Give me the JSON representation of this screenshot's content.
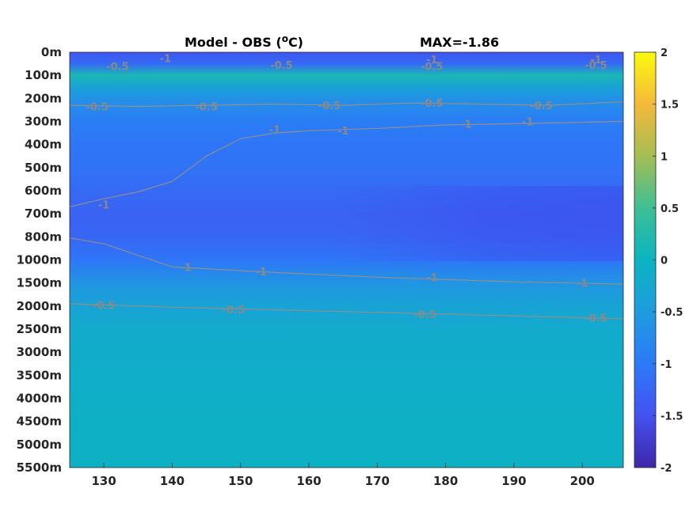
{
  "chart_data": {
    "type": "heatmap",
    "title_left": "Model - OBS (",
    "title_unit_sup": "o",
    "title_unit": "C)",
    "title_right": "MAX=-1.86",
    "xlabel": "",
    "ylabel": "",
    "x_ticks": [
      130,
      140,
      150,
      160,
      170,
      180,
      190,
      200
    ],
    "xlim": [
      125,
      206
    ],
    "y_ticks": [
      "0m",
      "100m",
      "200m",
      "300m",
      "400m",
      "500m",
      "600m",
      "700m",
      "800m",
      "1000m",
      "1500m",
      "2000m",
      "2500m",
      "3000m",
      "3500m",
      "4000m",
      "4500m",
      "5000m",
      "5500m"
    ],
    "colorbar": {
      "range": [
        -2,
        2
      ],
      "ticks": [
        "2",
        "1.5",
        "1",
        "0.5",
        "0",
        "-0.5",
        "-1",
        "-1.5",
        "-2"
      ],
      "colormap": "parula"
    },
    "depth_profile": [
      {
        "level": 0.0,
        "value": -1.45
      },
      {
        "level": 0.5,
        "value": -1.2
      },
      {
        "level": 1.0,
        "value": 0.15
      },
      {
        "level": 1.5,
        "value": -0.35
      },
      {
        "level": 2.0,
        "value": -0.65
      },
      {
        "level": 3.0,
        "value": -0.95
      },
      {
        "level": 4.0,
        "value": -1.05
      },
      {
        "level": 5.0,
        "value": -1.1
      },
      {
        "level": 6.0,
        "value": -1.2
      },
      {
        "level": 7.0,
        "value": -1.3
      },
      {
        "level": 8.0,
        "value": -1.25
      },
      {
        "level": 9.0,
        "value": -1.05
      },
      {
        "level": 10.0,
        "value": -0.6
      },
      {
        "level": 11.0,
        "value": -0.35
      },
      {
        "level": 12.0,
        "value": -0.2
      },
      {
        "level": 14.0,
        "value": -0.12
      },
      {
        "level": 18.0,
        "value": -0.06
      }
    ],
    "contour_labels": [
      {
        "text": "-0.5",
        "x": 132,
        "level": 0.6
      },
      {
        "text": "-1",
        "x": 139,
        "level": 0.25
      },
      {
        "text": "-0.5",
        "x": 156,
        "level": 0.55
      },
      {
        "text": "-1",
        "x": 178,
        "level": 0.3
      },
      {
        "text": "-0.5",
        "x": 178,
        "level": 0.6
      },
      {
        "text": "-1",
        "x": 202,
        "level": 0.3
      },
      {
        "text": "-0.5",
        "x": 202,
        "level": 0.55
      },
      {
        "text": "-0.5",
        "x": 129,
        "level": 2.35
      },
      {
        "text": "-0.5",
        "x": 145,
        "level": 2.35
      },
      {
        "text": "-0.5",
        "x": 163,
        "level": 2.3
      },
      {
        "text": "-0.5",
        "x": 178,
        "level": 2.2
      },
      {
        "text": "-0.5",
        "x": 194,
        "level": 2.3
      },
      {
        "text": "-1",
        "x": 155,
        "level": 3.35
      },
      {
        "text": "-1",
        "x": 165,
        "level": 3.4
      },
      {
        "text": "-1",
        "x": 183,
        "level": 3.1
      },
      {
        "text": "-1",
        "x": 192,
        "level": 3.0
      },
      {
        "text": "-1",
        "x": 130,
        "level": 6.6
      },
      {
        "text": "-1",
        "x": 142,
        "level": 9.3
      },
      {
        "text": "-1",
        "x": 153,
        "level": 9.5
      },
      {
        "text": "-1",
        "x": 178,
        "level": 9.75
      },
      {
        "text": "-1",
        "x": 200,
        "level": 10.0
      },
      {
        "text": "-0.5",
        "x": 130,
        "level": 10.95
      },
      {
        "text": "-0.5",
        "x": 149,
        "level": 11.15
      },
      {
        "text": "-0.5",
        "x": 177,
        "level": 11.35
      },
      {
        "text": "-0.5",
        "x": 202,
        "level": 11.5
      }
    ],
    "contour_lines": [
      {
        "level_value": -0.5,
        "points": [
          [
            125,
            2.3
          ],
          [
            135,
            2.35
          ],
          [
            145,
            2.3
          ],
          [
            155,
            2.25
          ],
          [
            165,
            2.3
          ],
          [
            175,
            2.2
          ],
          [
            185,
            2.25
          ],
          [
            195,
            2.3
          ],
          [
            206,
            2.15
          ]
        ]
      },
      {
        "level_value": -1,
        "points": [
          [
            125,
            6.7
          ],
          [
            130,
            6.35
          ],
          [
            135,
            6.05
          ],
          [
            140,
            5.6
          ],
          [
            145,
            4.5
          ],
          [
            150,
            3.75
          ],
          [
            155,
            3.5
          ],
          [
            160,
            3.4
          ],
          [
            170,
            3.3
          ],
          [
            180,
            3.15
          ],
          [
            190,
            3.1
          ],
          [
            206,
            3.0
          ]
        ]
      },
      {
        "level_value": -1,
        "points": [
          [
            125,
            8.05
          ],
          [
            130,
            8.3
          ],
          [
            140,
            9.3
          ],
          [
            152,
            9.5
          ],
          [
            170,
            9.75
          ],
          [
            190,
            9.95
          ],
          [
            206,
            10.05
          ]
        ]
      },
      {
        "level_value": -0.5,
        "points": [
          [
            125,
            10.9
          ],
          [
            140,
            11.05
          ],
          [
            160,
            11.2
          ],
          [
            180,
            11.35
          ],
          [
            206,
            11.55
          ]
        ]
      }
    ]
  }
}
